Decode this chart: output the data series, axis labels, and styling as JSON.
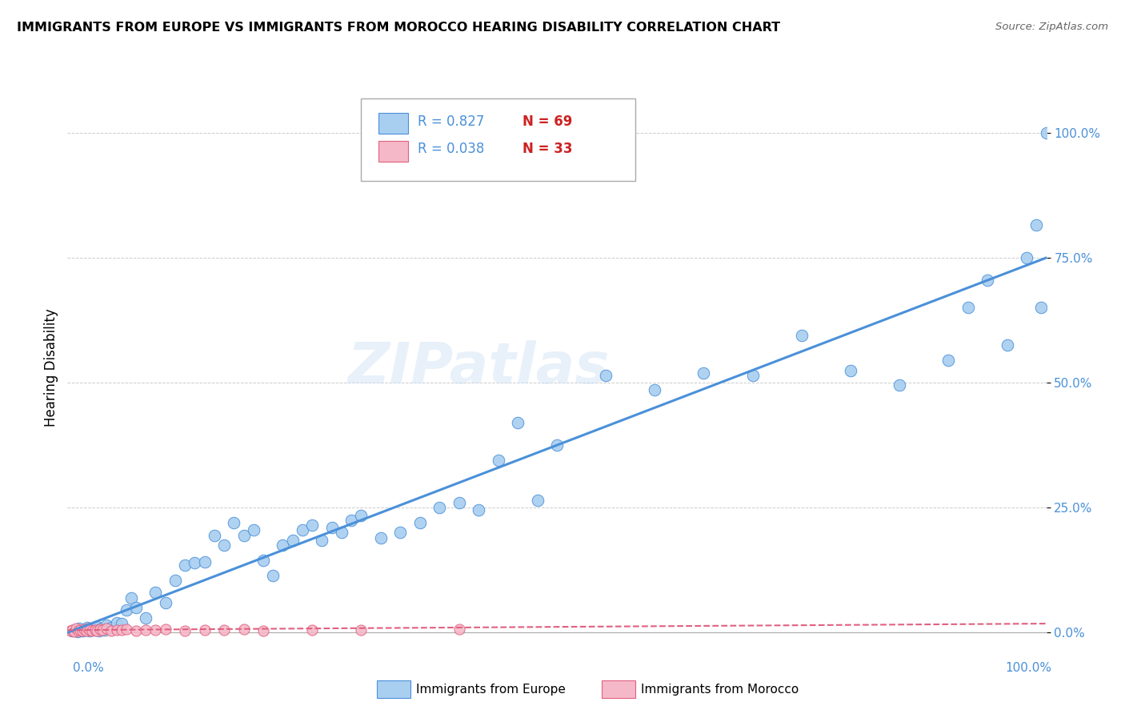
{
  "title": "IMMIGRANTS FROM EUROPE VS IMMIGRANTS FROM MOROCCO HEARING DISABILITY CORRELATION CHART",
  "source": "Source: ZipAtlas.com",
  "ylabel": "Hearing Disability",
  "ytick_vals": [
    0.0,
    25.0,
    50.0,
    75.0,
    100.0
  ],
  "xlim": [
    0.0,
    100.0
  ],
  "ylim": [
    -2.0,
    108.0
  ],
  "legend_europe_R": "0.827",
  "legend_europe_N": "69",
  "legend_morocco_R": "0.038",
  "legend_morocco_N": "33",
  "europe_color": "#a8cef0",
  "europe_line_color": "#4a90d9",
  "morocco_color": "#f5b8c8",
  "morocco_line_color": "#e06080",
  "europe_trendline_x": [
    0.0,
    100.0
  ],
  "europe_trendline_y": [
    0.0,
    75.0
  ],
  "morocco_trendline_x": [
    0.0,
    100.0
  ],
  "morocco_trendline_y": [
    0.5,
    1.8
  ],
  "scatter_europe_x": [
    0.5,
    0.8,
    1.0,
    1.2,
    1.5,
    1.8,
    2.0,
    2.3,
    2.5,
    2.8,
    3.0,
    3.2,
    3.5,
    3.8,
    4.0,
    4.5,
    5.0,
    5.5,
    6.0,
    6.5,
    7.0,
    8.0,
    9.0,
    10.0,
    11.0,
    12.0,
    13.0,
    14.0,
    15.0,
    16.0,
    17.0,
    18.0,
    19.0,
    20.0,
    21.0,
    22.0,
    23.0,
    24.0,
    25.0,
    26.0,
    27.0,
    28.0,
    29.0,
    30.0,
    32.0,
    34.0,
    36.0,
    38.0,
    40.0,
    42.0,
    44.0,
    46.0,
    48.0,
    50.0,
    55.0,
    60.0,
    65.0,
    70.0,
    75.0,
    80.0,
    85.0,
    90.0,
    92.0,
    94.0,
    96.0,
    98.0,
    99.0,
    99.5,
    100.0
  ],
  "scatter_europe_y": [
    0.3,
    0.5,
    0.2,
    0.8,
    0.4,
    0.6,
    1.0,
    0.3,
    0.7,
    0.5,
    1.2,
    0.4,
    0.8,
    0.5,
    1.5,
    1.0,
    2.0,
    1.8,
    4.5,
    7.0,
    5.0,
    3.0,
    8.0,
    6.0,
    10.5,
    13.5,
    14.0,
    14.2,
    19.5,
    17.5,
    22.0,
    19.5,
    20.5,
    14.5,
    11.5,
    17.5,
    18.5,
    20.5,
    21.5,
    18.5,
    21.0,
    20.0,
    22.5,
    23.5,
    19.0,
    20.0,
    22.0,
    25.0,
    26.0,
    24.5,
    34.5,
    42.0,
    26.5,
    37.5,
    51.5,
    48.5,
    52.0,
    51.5,
    59.5,
    52.5,
    49.5,
    54.5,
    65.0,
    70.5,
    57.5,
    75.0,
    81.5,
    65.0,
    100.0
  ],
  "scatter_morocco_x": [
    0.3,
    0.5,
    0.7,
    0.9,
    1.1,
    1.3,
    1.5,
    1.7,
    1.9,
    2.1,
    2.3,
    2.5,
    2.8,
    3.0,
    3.3,
    3.6,
    4.0,
    4.5,
    5.0,
    5.5,
    6.0,
    7.0,
    8.0,
    9.0,
    10.0,
    12.0,
    14.0,
    16.0,
    18.0,
    20.0,
    25.0,
    30.0,
    40.0
  ],
  "scatter_morocco_y": [
    0.3,
    0.5,
    0.2,
    0.8,
    0.4,
    0.6,
    0.3,
    0.7,
    0.4,
    0.9,
    0.5,
    0.3,
    0.6,
    0.4,
    0.7,
    0.5,
    0.8,
    0.4,
    0.6,
    0.5,
    0.7,
    0.4,
    0.6,
    0.5,
    0.7,
    0.4,
    0.6,
    0.5,
    0.7,
    0.4,
    0.6,
    0.5,
    0.7
  ]
}
